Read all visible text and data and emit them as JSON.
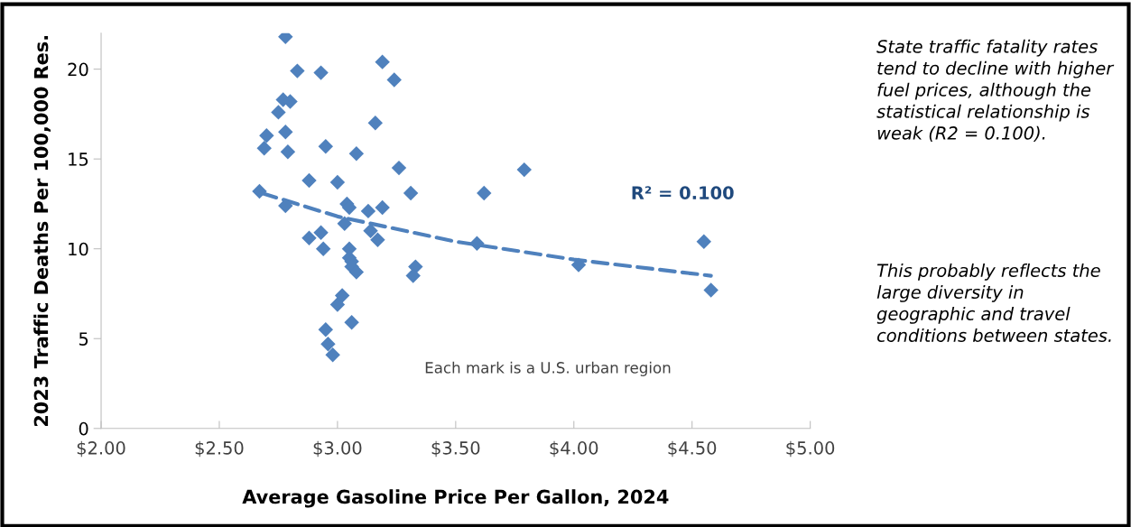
{
  "chart_data": {
    "type": "scatter",
    "xlabel": "Average Gasoline Price Per Gallon, 2024",
    "ylabel": "2023 Traffic Deaths Per 100,000 Res.",
    "xlim": [
      2,
      5
    ],
    "xticks": [
      {
        "value": 2,
        "label": "$2.00"
      },
      {
        "value": 2.5,
        "label": "$2.50"
      },
      {
        "value": 3,
        "label": "$3.00"
      },
      {
        "value": 3.5,
        "label": "$3.50"
      },
      {
        "value": 4,
        "label": "$4.00"
      },
      {
        "value": 4.5,
        "label": "$4.50"
      },
      {
        "value": 5,
        "label": "$5.00"
      }
    ],
    "ylim": [
      0,
      22
    ],
    "yticks": [
      0,
      5,
      10,
      15,
      20
    ],
    "grid": false,
    "marker": "diamond",
    "series": [
      {
        "color": "#4f81bd",
        "x": [
          2.78,
          2.83,
          2.93,
          3.19,
          3.24,
          2.77,
          2.8,
          2.75,
          3.16,
          2.78,
          2.7,
          2.69,
          2.79,
          2.95,
          3.08,
          3.26,
          3.79,
          2.88,
          3.0,
          2.67,
          3.31,
          3.62,
          2.78,
          3.04,
          3.05,
          3.13,
          3.19,
          3.03,
          3.14,
          3.17,
          2.93,
          2.88,
          2.94,
          3.05,
          3.05,
          3.06,
          3.06,
          3.08,
          3.33,
          3.32,
          3.59,
          4.02,
          4.55,
          4.58,
          3.02,
          3.0,
          3.06,
          2.95,
          2.96,
          2.98
        ],
        "values": [
          21.8,
          19.9,
          19.8,
          20.4,
          19.4,
          18.3,
          18.2,
          17.6,
          17.0,
          16.5,
          16.3,
          15.6,
          15.4,
          15.7,
          15.3,
          14.5,
          14.4,
          13.8,
          13.7,
          13.2,
          13.1,
          13.1,
          12.4,
          12.5,
          12.3,
          12.1,
          12.3,
          11.4,
          11.0,
          10.5,
          10.9,
          10.6,
          10.0,
          10.0,
          9.5,
          9.3,
          9.0,
          8.7,
          9.0,
          8.5,
          10.3,
          9.1,
          10.4,
          7.7,
          7.4,
          6.9,
          5.9,
          5.5,
          4.7,
          4.1
        ]
      },
      {
        "type": "line",
        "marker": "none",
        "color": "#4f81bd",
        "line_style": "dashed",
        "x": [
          2.68,
          3.0,
          3.5,
          4.0,
          4.58
        ],
        "values": [
          13.1,
          11.8,
          10.4,
          9.4,
          8.5
        ]
      }
    ],
    "annotations": [
      "R² = 0.100",
      "Each mark is a U.S. urban region",
      "State traffic fatality rates tend to decline with higher fuel prices, although the statistical relationship is weak (R2 = 0.100).",
      "This probably reflects the large diversity in geographic and travel conditions between states."
    ]
  }
}
